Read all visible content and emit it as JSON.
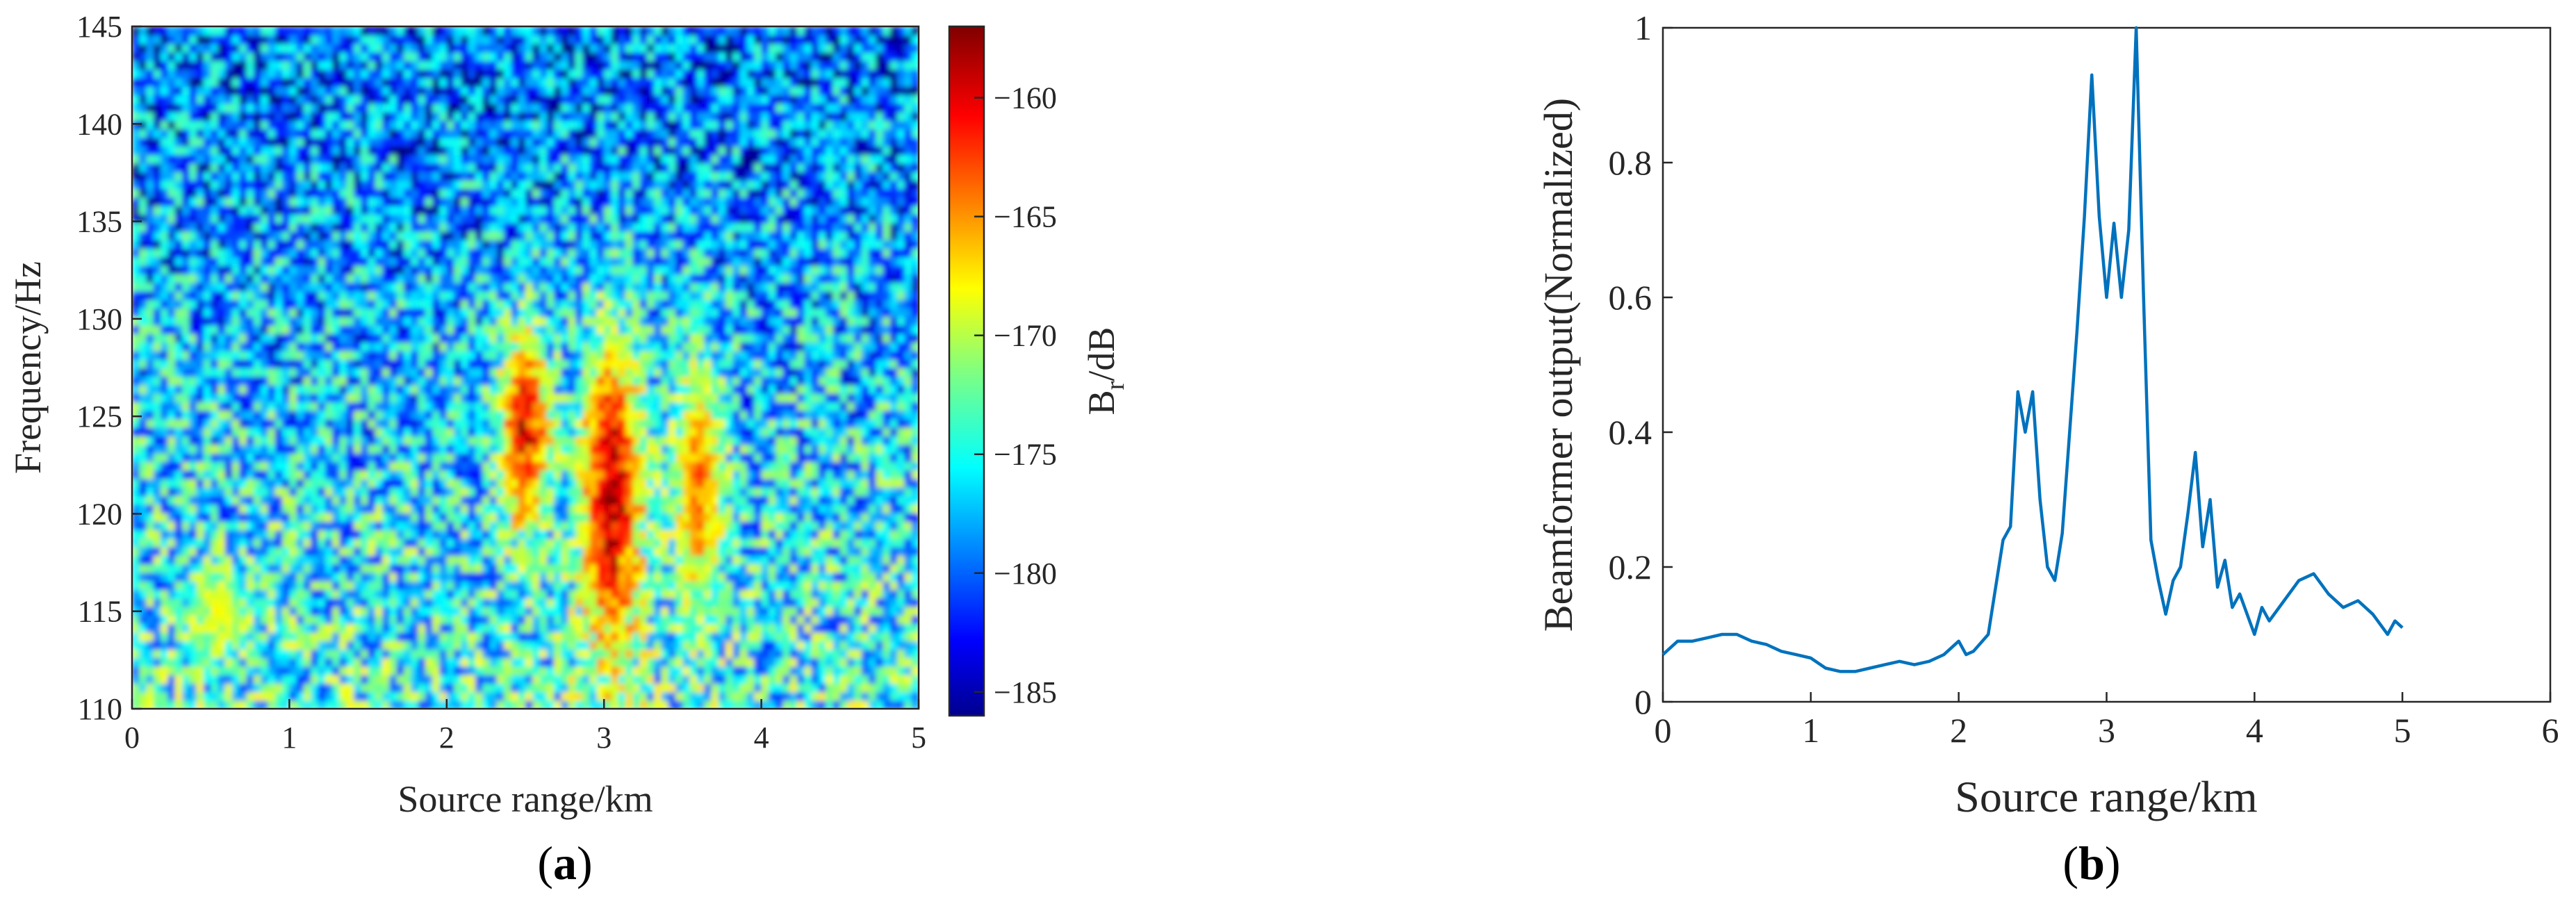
{
  "chart_data": [
    {
      "type": "heatmap",
      "panel": "(a)",
      "xlabel": "Source range/km",
      "ylabel": "Frequency/Hz",
      "xlim": [
        0,
        5
      ],
      "ylim": [
        110,
        145
      ],
      "xticks": [
        0,
        1,
        2,
        3,
        4,
        5
      ],
      "yticks": [
        110,
        115,
        120,
        125,
        130,
        135,
        140,
        145
      ],
      "colorbar": {
        "label_main": "B",
        "label_sub": "r",
        "label_tail": "/dB",
        "range": [
          -186,
          -157
        ],
        "ticks": [
          -160,
          -165,
          -170,
          -175,
          -180,
          -185
        ],
        "colormap": "jet"
      },
      "features": [
        {
          "desc": "high-energy band",
          "x_range": [
            2.3,
            2.7
          ],
          "y_range": [
            118,
            131
          ],
          "peak_dB": -158
        },
        {
          "desc": "high-energy band",
          "x_range": [
            2.8,
            3.3
          ],
          "y_range": [
            110,
            132
          ],
          "peak_dB": -157
        },
        {
          "desc": "medium band",
          "x_range": [
            3.4,
            3.8
          ],
          "y_range": [
            113,
            130
          ],
          "peak_dB": -163
        },
        {
          "desc": "low-frequency patch",
          "x_range": [
            0.3,
            0.8
          ],
          "y_range": [
            112,
            118
          ],
          "peak_dB": -168
        }
      ]
    },
    {
      "type": "line",
      "panel": "(b)",
      "xlabel": "Source range/km",
      "ylabel": "Beamformer output(Normalized)",
      "xlim": [
        0,
        6
      ],
      "ylim": [
        0,
        1
      ],
      "xticks": [
        0,
        1,
        2,
        3,
        4,
        5,
        6
      ],
      "yticks": [
        0,
        0.2,
        0.4,
        0.6,
        0.8,
        1
      ],
      "yticklabels": [
        "0",
        "0.2",
        "0.4",
        "0.6",
        "0.8",
        "1"
      ],
      "line_color": "#0072bd",
      "series": [
        {
          "x": [
            0,
            0.1,
            0.2,
            0.3,
            0.4,
            0.5,
            0.6,
            0.7,
            0.8,
            0.9,
            1.0,
            1.1,
            1.2,
            1.3,
            1.4,
            1.5,
            1.6,
            1.7,
            1.8,
            1.9,
            2.0,
            2.05,
            2.1,
            2.2,
            2.3,
            2.35,
            2.4,
            2.45,
            2.5,
            2.55,
            2.6,
            2.65,
            2.7,
            2.75,
            2.8,
            2.85,
            2.9,
            2.95,
            3.0,
            3.05,
            3.1,
            3.15,
            3.2,
            3.25,
            3.3,
            3.35,
            3.4,
            3.45,
            3.5,
            3.55,
            3.6,
            3.65,
            3.7,
            3.75,
            3.8,
            3.85,
            3.9,
            4.0,
            4.05,
            4.1,
            4.2,
            4.3,
            4.4,
            4.5,
            4.6,
            4.7,
            4.8,
            4.9,
            4.95,
            5.0
          ],
          "y": [
            0.07,
            0.09,
            0.09,
            0.095,
            0.1,
            0.1,
            0.09,
            0.085,
            0.075,
            0.07,
            0.065,
            0.05,
            0.045,
            0.045,
            0.05,
            0.055,
            0.06,
            0.055,
            0.06,
            0.07,
            0.09,
            0.07,
            0.075,
            0.1,
            0.24,
            0.26,
            0.46,
            0.4,
            0.46,
            0.3,
            0.2,
            0.18,
            0.25,
            0.4,
            0.55,
            0.72,
            0.93,
            0.72,
            0.6,
            0.71,
            0.6,
            0.7,
            1.0,
            0.6,
            0.24,
            0.18,
            0.13,
            0.18,
            0.2,
            0.28,
            0.37,
            0.23,
            0.3,
            0.17,
            0.21,
            0.14,
            0.16,
            0.1,
            0.14,
            0.12,
            0.15,
            0.18,
            0.19,
            0.16,
            0.14,
            0.15,
            0.13,
            0.1,
            0.12,
            0.11
          ]
        }
      ]
    }
  ]
}
